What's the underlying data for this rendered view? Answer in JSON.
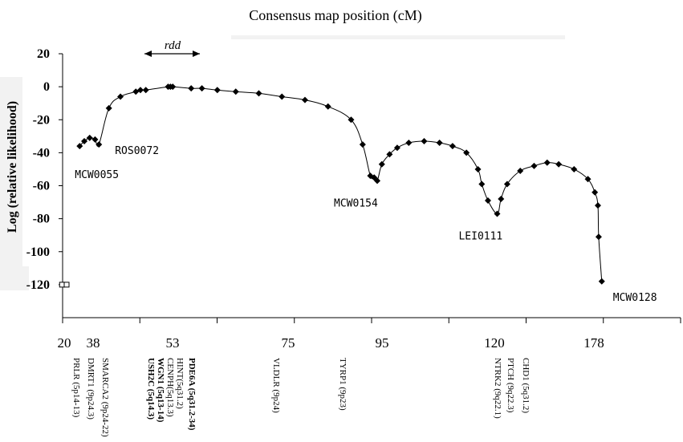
{
  "chart_data": {
    "type": "line",
    "title": "Consensus map position (cM)",
    "ylabel": "Log (relative likelihood)",
    "xlabel": "",
    "ylim": [
      -140,
      20
    ],
    "yticks": [
      "20",
      "0",
      "-20",
      "-40",
      "-60",
      "-80",
      "-100",
      "-120"
    ],
    "x_tick_labels": [
      "20",
      "38",
      "53",
      "75",
      "95",
      "120",
      "178"
    ],
    "region_label": "rdd",
    "series": [
      {
        "values": [
          [
            1.7,
            -36
          ],
          [
            2.3,
            -33
          ],
          [
            3.0,
            -31
          ],
          [
            3.7,
            -32
          ],
          [
            4.2,
            -35
          ],
          [
            5.5,
            -13
          ],
          [
            7.0,
            -6
          ],
          [
            9.0,
            -3
          ],
          [
            9.6,
            -2
          ],
          [
            10.3,
            -2
          ],
          [
            13.2,
            0
          ],
          [
            13.5,
            0
          ],
          [
            13.8,
            0
          ],
          [
            16.2,
            -1
          ],
          [
            17.6,
            -1
          ],
          [
            19.6,
            -2
          ],
          [
            22.0,
            -3
          ],
          [
            25.0,
            -4
          ],
          [
            28.0,
            -6
          ],
          [
            31.0,
            -8
          ],
          [
            34.0,
            -12
          ],
          [
            37.0,
            -20
          ],
          [
            38.5,
            -35
          ],
          [
            39.5,
            -54
          ],
          [
            40.0,
            -55
          ],
          [
            40.4,
            -57
          ],
          [
            41.0,
            -47
          ],
          [
            42.0,
            -41
          ],
          [
            43.0,
            -37
          ],
          [
            44.5,
            -34
          ],
          [
            46.5,
            -33
          ],
          [
            48.5,
            -34
          ],
          [
            50.2,
            -36
          ],
          [
            52.0,
            -40
          ],
          [
            53.5,
            -50
          ],
          [
            54.0,
            -59
          ],
          [
            54.8,
            -69
          ],
          [
            56.0,
            -77
          ],
          [
            56.5,
            -68
          ],
          [
            57.3,
            -59
          ],
          [
            59.0,
            -51
          ],
          [
            60.8,
            -48
          ],
          [
            62.5,
            -46
          ],
          [
            64.0,
            -47
          ],
          [
            66.0,
            -50
          ],
          [
            67.8,
            -56
          ],
          [
            68.7,
            -64
          ],
          [
            69.1,
            -72
          ],
          [
            69.2,
            -91
          ],
          [
            69.6,
            -118
          ]
        ]
      }
    ],
    "open_markers": [
      [
        -0.6,
        -120
      ],
      [
        0.0,
        -120
      ]
    ],
    "point_labels": [
      {
        "text": "ROS0072",
        "x": 4.2,
        "y": -35
      },
      {
        "text": "MCW0055",
        "x": 1.7,
        "y": -36
      },
      {
        "text": "MCW0154",
        "x": 40.4,
        "y": -57
      },
      {
        "text": "LEI0111",
        "x": 56.0,
        "y": -77
      },
      {
        "text": "MCW0128",
        "x": 69.6,
        "y": -118
      }
    ],
    "gene_labels": [
      {
        "text": "PRLR (5p14-13)",
        "bold": false
      },
      {
        "text": "DMRT1 (9p24.3)",
        "bold": false
      },
      {
        "text": "SMARCA2 (9p24-22)",
        "bold": false
      },
      {
        "text": "USH2C (5q14.3)",
        "bold": true
      },
      {
        "text": "WGN1 (5q13-14)",
        "bold": true
      },
      {
        "text": "CENPH(5q13.3)",
        "bold": false
      },
      {
        "text": "HINT(5q31.2)",
        "bold": false
      },
      {
        "text": "PDE6A (5q31.2-34)",
        "bold": true
      },
      {
        "text": "VLDLR (9p24)",
        "bold": false
      },
      {
        "text": "TYRP1 (9p23)",
        "bold": false
      },
      {
        "text": "NTRK2 (9q22.1)",
        "bold": false
      },
      {
        "text": "PTCH (9q22.3)",
        "bold": false
      },
      {
        "text": "CHD1 (5q31.2)",
        "bold": false
      }
    ]
  }
}
